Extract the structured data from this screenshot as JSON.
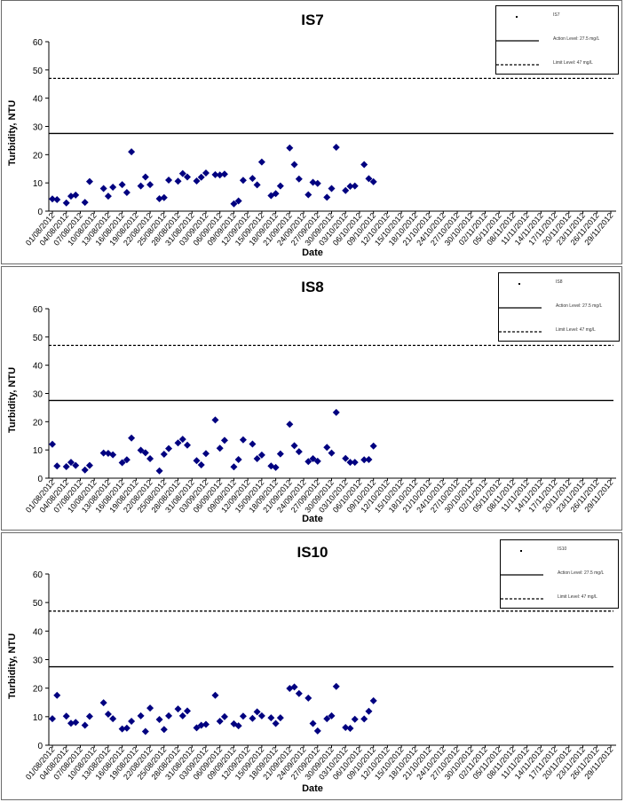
{
  "colors": {
    "marker": "#000080",
    "line": "#000000",
    "panel_border": "#6b6b6b"
  },
  "chart_data": [
    {
      "type": "scatter",
      "title": "IS7",
      "xlabel": "Date",
      "ylabel": "Turbidity, NTU",
      "ylim": [
        0,
        60
      ],
      "yticks": [
        0,
        10,
        20,
        30,
        40,
        50,
        60
      ],
      "action_level": 27.5,
      "limit_level": 47,
      "legend": [
        "IS7",
        "Action Level: 27.5 mg/L",
        "Limit Level: 47 mg/L"
      ],
      "xticks": [
        "01/08/2012",
        "04/08/2012",
        "07/08/2012",
        "10/08/2012",
        "13/08/2012",
        "16/08/2012",
        "19/08/2012",
        "22/08/2012",
        "25/08/2012",
        "28/08/2012",
        "31/08/2012",
        "03/09/2012",
        "06/09/2012",
        "09/09/2012",
        "12/09/2012",
        "15/09/2012",
        "18/09/2012",
        "21/09/2012",
        "24/09/2012",
        "27/09/2012",
        "30/09/2012",
        "03/10/2012",
        "06/10/2012",
        "09/10/2012",
        "12/10/2012",
        "15/10/2012",
        "18/10/2012",
        "21/10/2012",
        "24/10/2012",
        "27/10/2012",
        "30/10/2012",
        "02/11/2012",
        "05/11/2012",
        "08/11/2012",
        "11/11/2012",
        "14/11/2012",
        "17/11/2012",
        "20/11/2012",
        "23/11/2012",
        "26/11/2012",
        "29/11/2012"
      ],
      "points": [
        [
          "01/08/2012",
          4.3
        ],
        [
          "02/08/2012",
          4.1
        ],
        [
          "04/08/2012",
          2.9
        ],
        [
          "05/08/2012",
          5.3
        ],
        [
          "06/08/2012",
          5.7
        ],
        [
          "08/08/2012",
          3.1
        ],
        [
          "09/08/2012",
          10.5
        ],
        [
          "12/08/2012",
          8.0
        ],
        [
          "13/08/2012",
          5.3
        ],
        [
          "14/08/2012",
          8.5
        ],
        [
          "16/08/2012",
          9.4
        ],
        [
          "17/08/2012",
          6.6
        ],
        [
          "18/08/2012",
          21.0
        ],
        [
          "20/08/2012",
          8.9
        ],
        [
          "21/08/2012",
          12.1
        ],
        [
          "22/08/2012",
          9.4
        ],
        [
          "24/08/2012",
          4.4
        ],
        [
          "25/08/2012",
          4.8
        ],
        [
          "26/08/2012",
          11.0
        ],
        [
          "28/08/2012",
          10.6
        ],
        [
          "29/08/2012",
          13.3
        ],
        [
          "30/08/2012",
          12.1
        ],
        [
          "01/09/2012",
          10.7
        ],
        [
          "02/09/2012",
          12.0
        ],
        [
          "03/09/2012",
          13.5
        ],
        [
          "05/09/2012",
          12.9
        ],
        [
          "06/09/2012",
          12.8
        ],
        [
          "07/09/2012",
          13.1
        ],
        [
          "09/09/2012",
          2.6
        ],
        [
          "10/09/2012",
          3.6
        ],
        [
          "11/09/2012",
          10.9
        ],
        [
          "13/09/2012",
          11.6
        ],
        [
          "14/09/2012",
          9.3
        ],
        [
          "15/09/2012",
          17.4
        ],
        [
          "17/09/2012",
          5.5
        ],
        [
          "18/09/2012",
          6.2
        ],
        [
          "19/09/2012",
          8.9
        ],
        [
          "21/09/2012",
          22.4
        ],
        [
          "22/09/2012",
          16.5
        ],
        [
          "23/09/2012",
          11.4
        ],
        [
          "25/09/2012",
          5.8
        ],
        [
          "26/09/2012",
          10.2
        ],
        [
          "27/09/2012",
          9.8
        ],
        [
          "29/09/2012",
          4.9
        ],
        [
          "30/09/2012",
          8.0
        ],
        [
          "01/10/2012",
          22.6
        ],
        [
          "03/10/2012",
          7.3
        ],
        [
          "04/10/2012",
          8.8
        ],
        [
          "05/10/2012",
          8.9
        ],
        [
          "07/10/2012",
          16.5
        ],
        [
          "08/10/2012",
          11.5
        ],
        [
          "09/10/2012",
          10.4
        ]
      ]
    },
    {
      "type": "scatter",
      "title": "IS8",
      "xlabel": "Date",
      "ylabel": "Turbidity, NTU",
      "ylim": [
        0,
        60
      ],
      "yticks": [
        0,
        10,
        20,
        30,
        40,
        50,
        60
      ],
      "action_level": 27.5,
      "limit_level": 47,
      "legend": [
        "IS8",
        "Action Level: 27.5 mg/L",
        "Limit Level: 47 mg/L"
      ],
      "xticks": [
        "01/08/2012",
        "04/08/2012",
        "07/08/2012",
        "10/08/2012",
        "13/08/2012",
        "16/08/2012",
        "19/08/2012",
        "22/08/2012",
        "25/08/2012",
        "28/08/2012",
        "31/08/2012",
        "03/09/2012",
        "06/09/2012",
        "09/09/2012",
        "12/09/2012",
        "15/09/2012",
        "18/09/2012",
        "21/09/2012",
        "24/09/2012",
        "27/09/2012",
        "30/09/2012",
        "03/10/2012",
        "06/10/2012",
        "09/10/2012",
        "12/10/2012",
        "15/10/2012",
        "18/10/2012",
        "21/10/2012",
        "24/10/2012",
        "27/10/2012",
        "30/10/2012",
        "02/11/2012",
        "05/11/2012",
        "08/11/2012",
        "11/11/2012",
        "14/11/2012",
        "17/11/2012",
        "20/11/2012",
        "23/11/2012",
        "26/11/2012",
        "29/11/2012"
      ],
      "points": [
        [
          "01/08/2012",
          12.0
        ],
        [
          "02/08/2012",
          4.3
        ],
        [
          "04/08/2012",
          4.1
        ],
        [
          "05/08/2012",
          5.6
        ],
        [
          "06/08/2012",
          4.5
        ],
        [
          "08/08/2012",
          2.9
        ],
        [
          "09/08/2012",
          4.5
        ],
        [
          "12/08/2012",
          8.9
        ],
        [
          "13/08/2012",
          8.8
        ],
        [
          "14/08/2012",
          8.3
        ],
        [
          "16/08/2012",
          5.5
        ],
        [
          "17/08/2012",
          6.5
        ],
        [
          "18/08/2012",
          14.2
        ],
        [
          "20/08/2012",
          9.9
        ],
        [
          "21/08/2012",
          9.0
        ],
        [
          "22/08/2012",
          6.9
        ],
        [
          "24/08/2012",
          2.6
        ],
        [
          "25/08/2012",
          8.5
        ],
        [
          "26/08/2012",
          10.5
        ],
        [
          "28/08/2012",
          12.5
        ],
        [
          "29/08/2012",
          13.8
        ],
        [
          "30/08/2012",
          11.7
        ],
        [
          "01/09/2012",
          6.2
        ],
        [
          "02/09/2012",
          4.7
        ],
        [
          "03/09/2012",
          8.7
        ],
        [
          "05/09/2012",
          20.6
        ],
        [
          "06/09/2012",
          10.6
        ],
        [
          "07/09/2012",
          13.4
        ],
        [
          "09/09/2012",
          4.0
        ],
        [
          "10/09/2012",
          6.6
        ],
        [
          "11/09/2012",
          13.6
        ],
        [
          "13/09/2012",
          12.1
        ],
        [
          "14/09/2012",
          6.9
        ],
        [
          "15/09/2012",
          8.2
        ],
        [
          "17/09/2012",
          4.3
        ],
        [
          "18/09/2012",
          3.8
        ],
        [
          "19/09/2012",
          8.6
        ],
        [
          "21/09/2012",
          19.1
        ],
        [
          "22/09/2012",
          11.5
        ],
        [
          "23/09/2012",
          9.4
        ],
        [
          "25/09/2012",
          5.9
        ],
        [
          "26/09/2012",
          6.9
        ],
        [
          "27/09/2012",
          6.0
        ],
        [
          "29/09/2012",
          10.9
        ],
        [
          "30/09/2012",
          8.9
        ],
        [
          "01/10/2012",
          23.3
        ],
        [
          "03/10/2012",
          7.0
        ],
        [
          "04/10/2012",
          5.6
        ],
        [
          "05/10/2012",
          5.6
        ],
        [
          "07/10/2012",
          6.5
        ],
        [
          "08/10/2012",
          6.6
        ],
        [
          "09/10/2012",
          11.4
        ]
      ]
    },
    {
      "type": "scatter",
      "title": "IS10",
      "xlabel": "Date",
      "ylabel": "Turbidity, NTU",
      "ylim": [
        0,
        60
      ],
      "yticks": [
        0,
        10,
        20,
        30,
        40,
        50,
        60
      ],
      "action_level": 27.5,
      "limit_level": 47,
      "legend": [
        "IS10",
        "Action Level: 27.5 mg/L",
        "Limit Level: 47 mg/L"
      ],
      "xticks": [
        "01/08/2012",
        "04/08/2012",
        "07/08/2012",
        "10/08/2012",
        "13/08/2012",
        "16/08/2012",
        "19/08/2012",
        "22/08/2012",
        "25/08/2012",
        "28/08/2012",
        "31/08/2012",
        "03/09/2012",
        "06/09/2012",
        "09/09/2012",
        "12/09/2012",
        "15/09/2012",
        "18/09/2012",
        "21/09/2012",
        "24/09/2012",
        "27/09/2012",
        "30/09/2012",
        "03/10/2012",
        "06/10/2012",
        "09/10/2012",
        "12/10/2012",
        "15/10/2012",
        "18/10/2012",
        "21/10/2012",
        "24/10/2012",
        "27/10/2012",
        "30/10/2012",
        "02/11/2012",
        "05/11/2012",
        "08/11/2012",
        "11/11/2012",
        "14/11/2012",
        "17/11/2012",
        "20/11/2012",
        "23/11/2012",
        "26/11/2012",
        "29/11/2012"
      ],
      "points": [
        [
          "01/08/2012",
          9.3
        ],
        [
          "02/08/2012",
          17.5
        ],
        [
          "04/08/2012",
          10.2
        ],
        [
          "05/08/2012",
          7.7
        ],
        [
          "06/08/2012",
          8.0
        ],
        [
          "08/08/2012",
          7.0
        ],
        [
          "09/08/2012",
          10.1
        ],
        [
          "12/08/2012",
          14.9
        ],
        [
          "13/08/2012",
          10.9
        ],
        [
          "14/08/2012",
          9.3
        ],
        [
          "16/08/2012",
          5.7
        ],
        [
          "17/08/2012",
          6.0
        ],
        [
          "18/08/2012",
          8.4
        ],
        [
          "20/08/2012",
          10.3
        ],
        [
          "21/08/2012",
          4.8
        ],
        [
          "22/08/2012",
          13.0
        ],
        [
          "24/08/2012",
          9.0
        ],
        [
          "25/08/2012",
          5.5
        ],
        [
          "26/08/2012",
          10.3
        ],
        [
          "28/08/2012",
          12.7
        ],
        [
          "29/08/2012",
          10.3
        ],
        [
          "30/08/2012",
          12.0
        ],
        [
          "01/09/2012",
          6.1
        ],
        [
          "02/09/2012",
          7.0
        ],
        [
          "03/09/2012",
          7.3
        ],
        [
          "05/09/2012",
          17.5
        ],
        [
          "06/09/2012",
          8.4
        ],
        [
          "07/09/2012",
          10.0
        ],
        [
          "09/09/2012",
          7.5
        ],
        [
          "10/09/2012",
          6.8
        ],
        [
          "11/09/2012",
          10.2
        ],
        [
          "13/09/2012",
          9.4
        ],
        [
          "14/09/2012",
          11.7
        ],
        [
          "15/09/2012",
          10.3
        ],
        [
          "17/09/2012",
          9.6
        ],
        [
          "18/09/2012",
          7.6
        ],
        [
          "19/09/2012",
          9.6
        ],
        [
          "21/09/2012",
          19.9
        ],
        [
          "22/09/2012",
          20.4
        ],
        [
          "23/09/2012",
          18.1
        ],
        [
          "25/09/2012",
          16.5
        ],
        [
          "26/09/2012",
          7.6
        ],
        [
          "27/09/2012",
          5.0
        ],
        [
          "29/09/2012",
          9.3
        ],
        [
          "30/09/2012",
          10.3
        ],
        [
          "01/10/2012",
          20.6
        ],
        [
          "03/10/2012",
          6.2
        ],
        [
          "04/10/2012",
          5.9
        ],
        [
          "05/10/2012",
          9.1
        ],
        [
          "07/10/2012",
          9.2
        ],
        [
          "08/10/2012",
          11.9
        ],
        [
          "09/10/2012",
          15.6
        ]
      ]
    }
  ]
}
